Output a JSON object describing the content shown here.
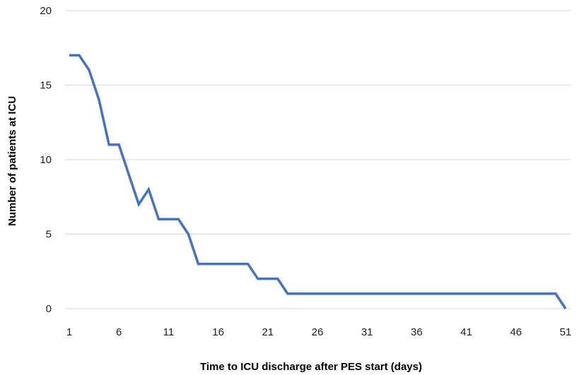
{
  "chart_data": {
    "type": "line",
    "title": "",
    "xlabel": "Time to ICU discharge after PES start (days)",
    "ylabel": "Number of patients at ICU",
    "xlim": [
      1,
      51
    ],
    "ylim": [
      0,
      20
    ],
    "x_ticks": [
      1,
      6,
      11,
      16,
      21,
      26,
      31,
      36,
      41,
      46,
      51
    ],
    "y_ticks": [
      0,
      5,
      10,
      15,
      20
    ],
    "grid": "horizontal",
    "legend": "none",
    "series": [
      {
        "color": "#4472C4",
        "x": [
          1,
          2,
          3,
          4,
          5,
          6,
          7,
          8,
          9,
          10,
          11,
          12,
          13,
          14,
          15,
          16,
          17,
          18,
          19,
          20,
          21,
          22,
          23,
          24,
          25,
          26,
          27,
          28,
          29,
          30,
          31,
          32,
          33,
          34,
          35,
          36,
          37,
          38,
          39,
          40,
          41,
          42,
          43,
          44,
          45,
          46,
          47,
          48,
          49,
          50,
          51
        ],
        "values": [
          17,
          17,
          16,
          14,
          11,
          11,
          9,
          7,
          8,
          6,
          6,
          6,
          5,
          3,
          3,
          3,
          3,
          3,
          3,
          2,
          2,
          2,
          1,
          1,
          1,
          1,
          1,
          1,
          1,
          1,
          1,
          1,
          1,
          1,
          1,
          1,
          1,
          1,
          1,
          1,
          1,
          1,
          1,
          1,
          1,
          1,
          1,
          1,
          1,
          1,
          0
        ]
      }
    ]
  }
}
